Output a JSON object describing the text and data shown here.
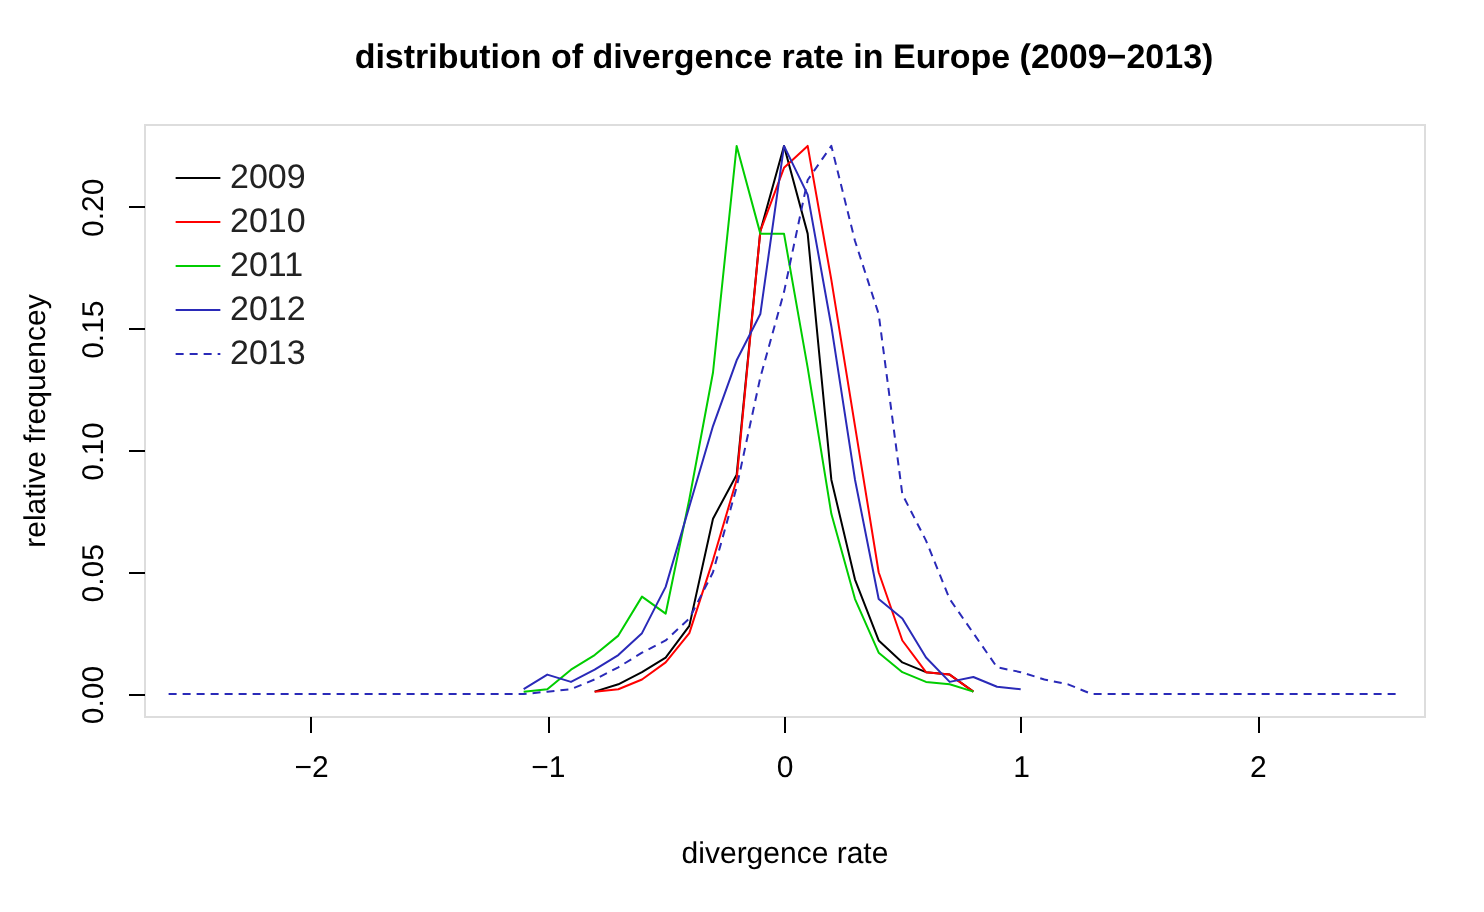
{
  "chart_data": {
    "type": "line",
    "title": "distribution of divergence rate in Europe (2009−2013)",
    "xlabel": "divergence rate",
    "ylabel": "relative frequencey",
    "x": [
      -2.6,
      -2.5,
      -2.4,
      -2.3,
      -2.2,
      -2.1,
      -2.0,
      -1.9,
      -1.8,
      -1.7,
      -1.6,
      -1.5,
      -1.4,
      -1.3,
      -1.2,
      -1.1,
      -1.0,
      -0.9,
      -0.8,
      -0.7,
      -0.6,
      -0.5,
      -0.4,
      -0.3,
      -0.2,
      -0.1,
      0.0,
      0.1,
      0.2,
      0.3,
      0.4,
      0.5,
      0.6,
      0.7,
      0.8,
      0.9,
      1.0,
      1.1,
      1.2,
      1.3,
      1.4,
      1.5,
      1.6,
      1.7,
      1.8,
      1.9,
      2.0,
      2.1,
      2.2,
      2.3,
      2.4,
      2.5,
      2.6
    ],
    "series": [
      {
        "name": "2009",
        "color": "#000000",
        "line_style": "solid",
        "values": [
          null,
          null,
          null,
          null,
          null,
          null,
          null,
          null,
          null,
          null,
          null,
          null,
          null,
          null,
          null,
          null,
          null,
          null,
          0.001,
          0.004,
          0.009,
          0.015,
          0.028,
          0.072,
          0.09,
          0.19,
          0.225,
          0.189,
          0.088,
          0.047,
          0.022,
          0.013,
          0.009,
          0.008,
          0.001,
          null,
          null,
          null,
          null,
          null,
          null,
          null,
          null,
          null,
          null,
          null,
          null,
          null,
          null,
          null,
          null,
          null,
          null
        ]
      },
      {
        "name": "2010",
        "color": "#ff0000",
        "line_style": "solid",
        "values": [
          null,
          null,
          null,
          null,
          null,
          null,
          null,
          null,
          null,
          null,
          null,
          null,
          null,
          null,
          null,
          null,
          null,
          null,
          0.001,
          0.002,
          0.006,
          0.013,
          0.025,
          0.055,
          0.088,
          0.19,
          0.216,
          0.225,
          0.17,
          0.11,
          0.05,
          0.022,
          0.009,
          0.008,
          0.001,
          null,
          null,
          null,
          null,
          null,
          null,
          null,
          null,
          null,
          null,
          null,
          null,
          null,
          null,
          null,
          null,
          null,
          null
        ]
      },
      {
        "name": "2011",
        "color": "#00cd00",
        "line_style": "solid",
        "values": [
          null,
          null,
          null,
          null,
          null,
          null,
          null,
          null,
          null,
          null,
          null,
          null,
          null,
          null,
          null,
          0.001,
          0.002,
          0.01,
          0.016,
          0.024,
          0.04,
          0.033,
          0.08,
          0.132,
          0.225,
          0.189,
          0.189,
          0.134,
          0.074,
          0.039,
          0.017,
          0.009,
          0.005,
          0.004,
          0.001,
          null,
          null,
          null,
          null,
          null,
          null,
          null,
          null,
          null,
          null,
          null,
          null,
          null,
          null,
          null,
          null,
          null,
          null
        ]
      },
      {
        "name": "2012",
        "color": "#2a2ab8",
        "line_style": "solid",
        "values": [
          null,
          null,
          null,
          null,
          null,
          null,
          null,
          null,
          null,
          null,
          null,
          null,
          null,
          null,
          null,
          0.002,
          0.008,
          0.005,
          0.01,
          0.016,
          0.025,
          0.044,
          0.077,
          0.11,
          0.137,
          0.156,
          0.225,
          0.205,
          0.151,
          0.088,
          0.039,
          0.031,
          0.015,
          0.005,
          0.007,
          0.003,
          0.002,
          null,
          null,
          null,
          null,
          null,
          null,
          null,
          null,
          null,
          null,
          null,
          null,
          null,
          null,
          null,
          null
        ]
      },
      {
        "name": "2013",
        "color": "#2a2ab8",
        "line_style": "dashed",
        "values": [
          0,
          0,
          0,
          0,
          0,
          0,
          0,
          0,
          0,
          0,
          0,
          0,
          0,
          0,
          0,
          0,
          0.001,
          0.002,
          0.006,
          0.011,
          0.017,
          0.022,
          0.031,
          0.05,
          0.085,
          0.13,
          0.165,
          0.211,
          0.225,
          0.186,
          0.156,
          0.082,
          0.063,
          0.039,
          0.025,
          0.011,
          0.009,
          0.006,
          0.004,
          0,
          0,
          0,
          0,
          0,
          0,
          0,
          0,
          0,
          0,
          0,
          0,
          0,
          0
        ]
      }
    ],
    "xlim": [
      -2.704,
      2.704
    ],
    "ylim": [
      -0.009,
      0.234
    ],
    "xticks": [
      {
        "value": -2,
        "label": "−2"
      },
      {
        "value": -1,
        "label": "−1"
      },
      0,
      1,
      2
    ],
    "yticks": [
      {
        "value": 0,
        "label": "0.00"
      },
      {
        "value": 0.05,
        "label": "0.05"
      },
      {
        "value": 0.1,
        "label": "0.10"
      },
      {
        "value": 0.15,
        "label": "0.15"
      },
      {
        "value": 0.2,
        "label": "0.20"
      }
    ],
    "grid": false,
    "legend": "top left",
    "marker": "none"
  }
}
